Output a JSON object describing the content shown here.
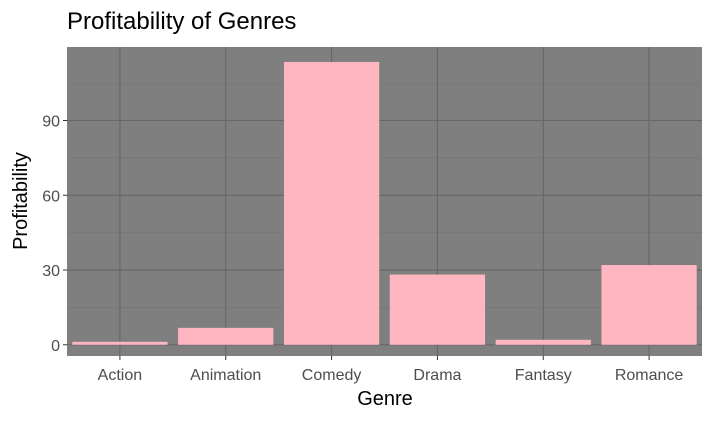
{
  "chart_data": {
    "type": "bar",
    "title": "Profitability of Genres",
    "xlabel": "Genre",
    "ylabel": "Profitability",
    "categories": [
      "Action",
      "Animation",
      "Comedy",
      "Drama",
      "Fantasy",
      "Romance"
    ],
    "values": [
      1.2,
      6.8,
      113.5,
      28.2,
      2.0,
      32.0
    ],
    "ylim": [
      -4.5,
      119.5
    ],
    "yticks": [
      0,
      30,
      60,
      90
    ],
    "grid": true,
    "colors": {
      "panel": "#7f7f7f",
      "bar": "#ffb6c1",
      "grid_major": "#666666",
      "grid_minor": "#737373",
      "tick_label": "#4d4d4d",
      "text": "#000000"
    }
  }
}
